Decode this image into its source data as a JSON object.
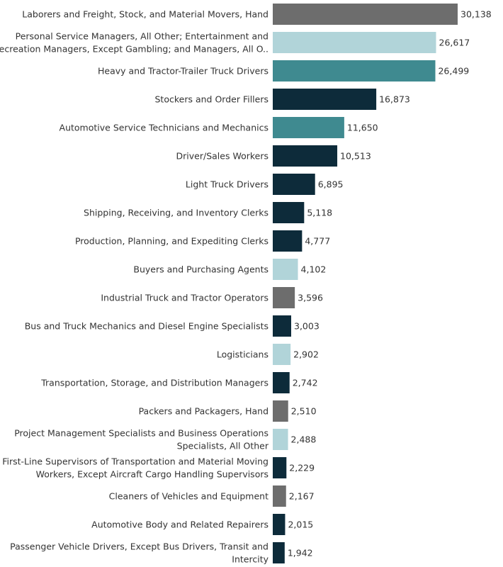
{
  "chart_data": {
    "type": "bar",
    "orientation": "horizontal",
    "title": "",
    "xlabel": "",
    "ylabel": "",
    "xlim": [
      0,
      30138
    ],
    "grid": false,
    "legend": "none",
    "colors": {
      "dark_navy": "#0d2b3a",
      "teal": "#3f8a90",
      "light_blue": "#b1d4d9",
      "gray": "#6d6d6d"
    },
    "categories": [
      "Laborers and Freight, Stock, and Material Movers, Hand",
      "Personal Service Managers, All Other; Entertainment and Recreation Managers, Except Gambling; and Managers, All O..",
      "Heavy and Tractor-Trailer Truck Drivers",
      "Stockers and Order Fillers",
      "Automotive Service Technicians and Mechanics",
      "Driver/Sales Workers",
      "Light Truck Drivers",
      "Shipping, Receiving, and Inventory Clerks",
      "Production, Planning, and Expediting Clerks",
      "Buyers and Purchasing Agents",
      "Industrial Truck and Tractor Operators",
      "Bus and Truck Mechanics and Diesel Engine Specialists",
      "Logisticians",
      "Transportation, Storage, and Distribution Managers",
      "Packers and Packagers, Hand",
      "Project Management Specialists and Business Operations Specialists, All Other",
      "First-Line Supervisors of Transportation and Material Moving Workers, Except Aircraft Cargo Handling Supervisors",
      "Cleaners of Vehicles and Equipment",
      "Automotive Body and Related Repairers",
      "Passenger Vehicle Drivers, Except Bus Drivers, Transit and Intercity"
    ],
    "label_lines": [
      [
        "Laborers and Freight, Stock, and Material Movers, Hand"
      ],
      [
        "Personal Service Managers, All Other; Entertainment and",
        "Recreation Managers, Except Gambling; and Managers, All O.."
      ],
      [
        "Heavy and Tractor-Trailer Truck Drivers"
      ],
      [
        "Stockers and Order Fillers"
      ],
      [
        "Automotive Service Technicians and Mechanics"
      ],
      [
        "Driver/Sales Workers"
      ],
      [
        "Light Truck Drivers"
      ],
      [
        "Shipping, Receiving, and Inventory Clerks"
      ],
      [
        "Production, Planning, and Expediting Clerks"
      ],
      [
        "Buyers and Purchasing Agents"
      ],
      [
        "Industrial Truck and Tractor Operators"
      ],
      [
        "Bus and Truck Mechanics and Diesel Engine Specialists"
      ],
      [
        "Logisticians"
      ],
      [
        "Transportation, Storage, and Distribution Managers"
      ],
      [
        "Packers and Packagers, Hand"
      ],
      [
        "Project Management Specialists and Business Operations",
        "Specialists, All Other"
      ],
      [
        "First-Line Supervisors of Transportation and Material Moving",
        "Workers, Except Aircraft Cargo Handling Supervisors"
      ],
      [
        "Cleaners of Vehicles and Equipment"
      ],
      [
        "Automotive Body and Related Repairers"
      ],
      [
        "Passenger Vehicle Drivers, Except Bus Drivers, Transit and",
        "Intercity"
      ]
    ],
    "values": [
      30138,
      26617,
      26499,
      16873,
      11650,
      10513,
      6895,
      5118,
      4777,
      4102,
      3596,
      3003,
      2902,
      2742,
      2510,
      2488,
      2229,
      2167,
      2015,
      1942
    ],
    "value_labels": [
      "30,138",
      "26,617",
      "26,499",
      "16,873",
      "11,650",
      "10,513",
      "6,895",
      "5,118",
      "4,777",
      "4,102",
      "3,596",
      "3,003",
      "2,902",
      "2,742",
      "2,510",
      "2,488",
      "2,229",
      "2,167",
      "2,015",
      "1,942"
    ],
    "bar_colors": [
      "gray",
      "light_blue",
      "teal",
      "dark_navy",
      "teal",
      "dark_navy",
      "dark_navy",
      "dark_navy",
      "dark_navy",
      "light_blue",
      "gray",
      "dark_navy",
      "light_blue",
      "dark_navy",
      "gray",
      "light_blue",
      "dark_navy",
      "gray",
      "dark_navy",
      "dark_navy"
    ]
  }
}
